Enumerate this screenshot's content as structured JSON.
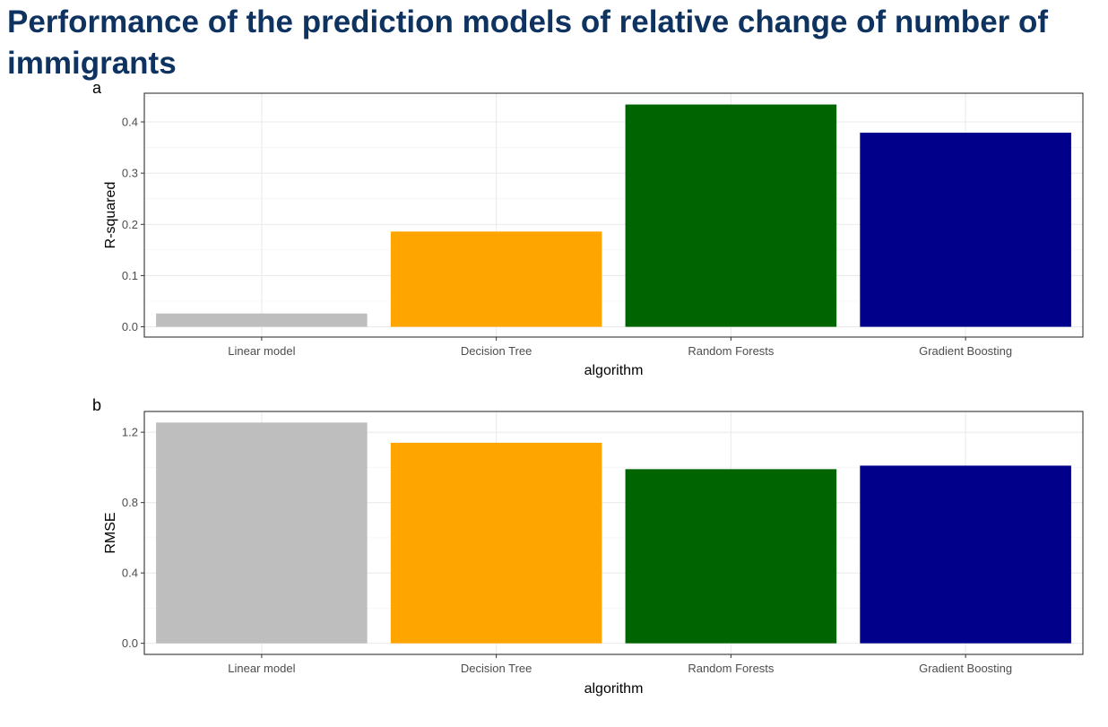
{
  "title": "Performance of the prediction models of relative change of number of immigrants",
  "chart_data": [
    {
      "type": "bar",
      "panel": "a",
      "categories": [
        "Linear model",
        "Decision Tree",
        "Random Forests",
        "Gradient Boosting"
      ],
      "values": [
        0.026,
        0.186,
        0.434,
        0.379
      ],
      "colors": [
        "#bebebe",
        "#ffa500",
        "#006400",
        "#00008b"
      ],
      "xlabel": "algorithm",
      "ylabel": "R-squared",
      "ylim": [
        -0.02,
        0.456
      ],
      "yticks": [
        0.0,
        0.1,
        0.2,
        0.3,
        0.4
      ],
      "ytick_labels": [
        "0.0",
        "0.1",
        "0.2",
        "0.3",
        "0.4"
      ],
      "grid": true
    },
    {
      "type": "bar",
      "panel": "b",
      "categories": [
        "Linear model",
        "Decision Tree",
        "Random Forests",
        "Gradient Boosting"
      ],
      "values": [
        1.255,
        1.14,
        0.99,
        1.01
      ],
      "colors": [
        "#bebebe",
        "#ffa500",
        "#006400",
        "#00008b"
      ],
      "xlabel": "algorithm",
      "ylabel": "RMSE",
      "ylim": [
        -0.063,
        1.318
      ],
      "yticks": [
        0.0,
        0.4,
        0.8,
        1.2
      ],
      "ytick_labels": [
        "0.0",
        "0.4",
        "0.8",
        "1.2"
      ],
      "grid": true
    }
  ]
}
